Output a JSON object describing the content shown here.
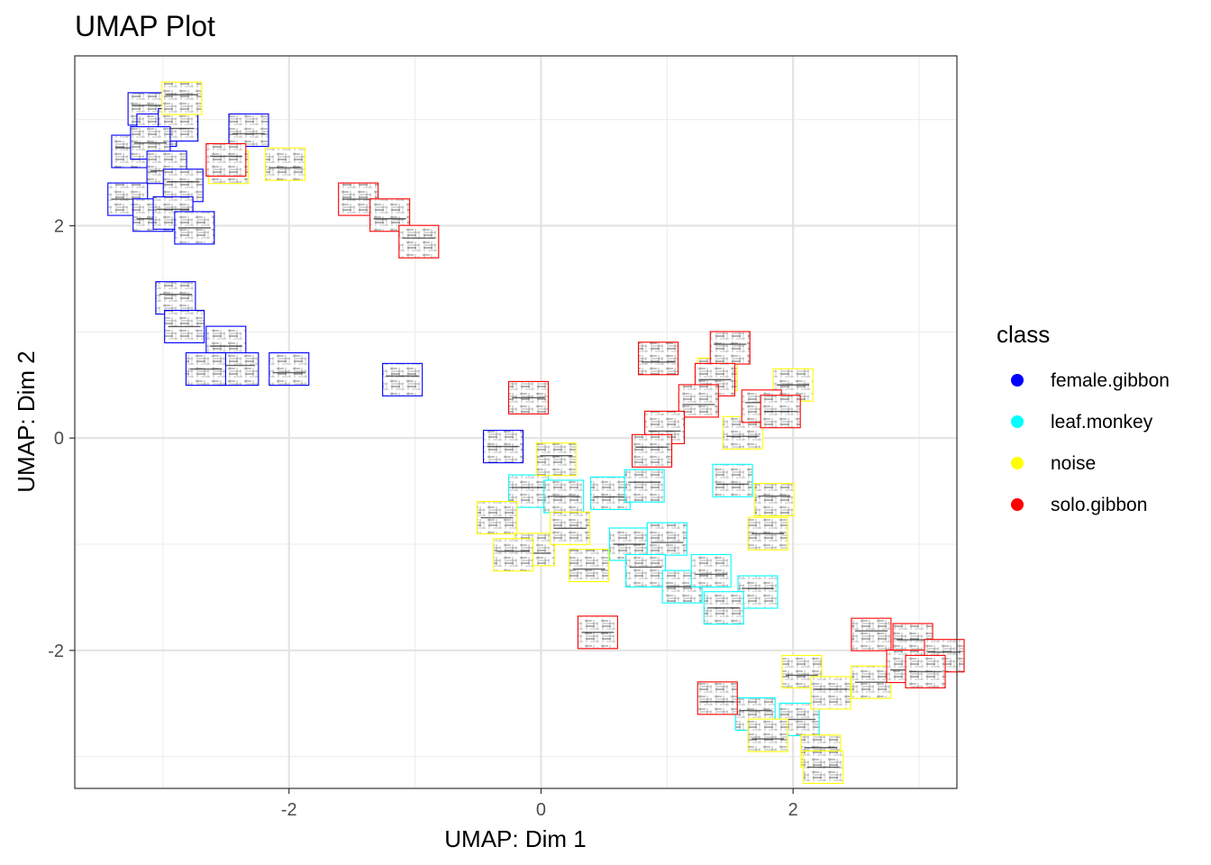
{
  "chart_data": {
    "type": "scatter",
    "title": "UMAP Plot",
    "xlabel": "UMAP: Dim 1",
    "ylabel": "UMAP: Dim 2",
    "xlim": [
      -3.7,
      3.3
    ],
    "ylim": [
      -3.3,
      3.6
    ],
    "xticks": [
      -2,
      0,
      2
    ],
    "yticks": [
      -2,
      0,
      2
    ],
    "xtick_labels": [
      "-2",
      "0",
      "2"
    ],
    "ytick_labels": [
      "-2",
      "0",
      "2"
    ],
    "grid": true,
    "marker": "spectrogram-thumbnail",
    "legend": {
      "title": "class",
      "position": "right",
      "entries": [
        {
          "label": "female.gibbon",
          "color": "#0000FF"
        },
        {
          "label": "leaf.monkey",
          "color": "#00FFFF"
        },
        {
          "label": "noise",
          "color": "#FFFF00"
        },
        {
          "label": "solo.gibbon",
          "color": "#FF0000"
        }
      ]
    },
    "series": [
      {
        "name": "female.gibbon",
        "color": "#0000FF",
        "points": [
          {
            "x": -3.12,
            "y": 3.1
          },
          {
            "x": -3.05,
            "y": 2.9
          },
          {
            "x": -2.88,
            "y": 2.95
          },
          {
            "x": -3.25,
            "y": 2.7
          },
          {
            "x": -3.1,
            "y": 2.78
          },
          {
            "x": -2.97,
            "y": 2.55
          },
          {
            "x": -2.84,
            "y": 2.38
          },
          {
            "x": -3.28,
            "y": 2.25
          },
          {
            "x": -3.08,
            "y": 2.1
          },
          {
            "x": -2.92,
            "y": 2.12
          },
          {
            "x": -2.75,
            "y": 1.98
          },
          {
            "x": -2.32,
            "y": 2.9
          },
          {
            "x": -2.9,
            "y": 1.32
          },
          {
            "x": -2.83,
            "y": 1.05
          },
          {
            "x": -2.5,
            "y": 0.9
          },
          {
            "x": -2.4,
            "y": 0.65
          },
          {
            "x": -2.66,
            "y": 0.65
          },
          {
            "x": -2.0,
            "y": 0.65
          },
          {
            "x": -1.1,
            "y": 0.55
          },
          {
            "x": -0.3,
            "y": -0.08
          }
        ]
      },
      {
        "name": "leaf.monkey",
        "color": "#00FFFF",
        "points": [
          {
            "x": -0.1,
            "y": -0.5
          },
          {
            "x": 0.18,
            "y": -0.55
          },
          {
            "x": 0.55,
            "y": -0.52
          },
          {
            "x": 0.82,
            "y": -0.45
          },
          {
            "x": 0.7,
            "y": -1.0
          },
          {
            "x": 1.0,
            "y": -0.95
          },
          {
            "x": 0.83,
            "y": -1.25
          },
          {
            "x": 1.12,
            "y": -1.4
          },
          {
            "x": 1.35,
            "y": -1.25
          },
          {
            "x": 1.72,
            "y": -1.45
          },
          {
            "x": 1.45,
            "y": -1.6
          },
          {
            "x": 1.52,
            "y": -0.4
          },
          {
            "x": 1.7,
            "y": -2.6
          },
          {
            "x": 2.05,
            "y": -2.65
          }
        ]
      },
      {
        "name": "noise",
        "color": "#FFFF00",
        "points": [
          {
            "x": -2.85,
            "y": 3.2
          },
          {
            "x": -2.48,
            "y": 2.55
          },
          {
            "x": -2.03,
            "y": 2.58
          },
          {
            "x": 0.12,
            "y": -0.2
          },
          {
            "x": -0.35,
            "y": -0.75
          },
          {
            "x": -0.05,
            "y": -1.05
          },
          {
            "x": -0.22,
            "y": -1.1
          },
          {
            "x": 0.23,
            "y": -0.85
          },
          {
            "x": 0.38,
            "y": -1.2
          },
          {
            "x": 1.4,
            "y": 0.6
          },
          {
            "x": 2.0,
            "y": 0.5
          },
          {
            "x": 1.6,
            "y": 0.05
          },
          {
            "x": 1.85,
            "y": -0.58
          },
          {
            "x": 1.8,
            "y": -0.9
          },
          {
            "x": 2.07,
            "y": -2.2
          },
          {
            "x": 2.3,
            "y": -2.4
          },
          {
            "x": 2.62,
            "y": -2.3
          },
          {
            "x": 1.8,
            "y": -2.8
          },
          {
            "x": 2.22,
            "y": -2.95
          },
          {
            "x": 2.24,
            "y": -3.1
          }
        ]
      },
      {
        "name": "solo.gibbon",
        "color": "#FF0000",
        "points": [
          {
            "x": -2.5,
            "y": 2.62
          },
          {
            "x": -1.45,
            "y": 2.25
          },
          {
            "x": -1.2,
            "y": 2.1
          },
          {
            "x": -0.97,
            "y": 1.85
          },
          {
            "x": -0.1,
            "y": 0.38
          },
          {
            "x": 0.93,
            "y": 0.75
          },
          {
            "x": 1.5,
            "y": 0.85
          },
          {
            "x": 1.38,
            "y": 0.55
          },
          {
            "x": 1.25,
            "y": 0.35
          },
          {
            "x": 1.75,
            "y": 0.3
          },
          {
            "x": 1.9,
            "y": 0.25
          },
          {
            "x": 0.98,
            "y": 0.1
          },
          {
            "x": 0.88,
            "y": -0.12
          },
          {
            "x": 0.45,
            "y": -1.83
          },
          {
            "x": 1.4,
            "y": -2.45
          },
          {
            "x": 2.62,
            "y": -1.85
          },
          {
            "x": 2.95,
            "y": -1.9
          },
          {
            "x": 2.9,
            "y": -2.15
          },
          {
            "x": 3.2,
            "y": -2.05
          },
          {
            "x": 3.05,
            "y": -2.2
          }
        ]
      }
    ]
  }
}
